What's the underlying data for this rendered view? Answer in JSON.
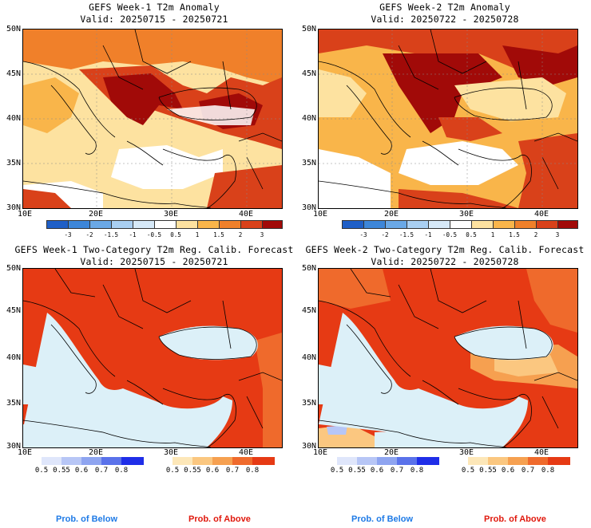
{
  "panels": [
    {
      "title": "GEFS Week-1 T2m Anomaly",
      "valid": "Valid: 20250715 - 20250721"
    },
    {
      "title": "GEFS Week-2 T2m Anomaly",
      "valid": "Valid: 20250722 - 20250728"
    },
    {
      "title": "GEFS Week-1 Two-Category T2m Reg. Calib. Forecast",
      "valid": "Valid: 20250715 - 20250721"
    },
    {
      "title": "GEFS Week-2 Two-Category T2m Reg. Calib. Forecast",
      "valid": "Valid: 20250722 - 20250728"
    }
  ],
  "axes": {
    "lat_labels": [
      "50N",
      "45N",
      "40N",
      "35N",
      "30N"
    ],
    "lon_labels": [
      "10E",
      "20E",
      "30E",
      "40E"
    ]
  },
  "anomaly_scale": {
    "ticks": [
      "-3",
      "-2",
      "-1.5",
      "-1",
      "-0.5",
      "0.5",
      "1",
      "1.5",
      "2",
      "3"
    ],
    "colors": [
      "#1f5fc7",
      "#3d86d9",
      "#6aa8e6",
      "#a9cff2",
      "#d6e9f8",
      "#ffffff",
      "#fde2a0",
      "#f9b54a",
      "#f0802a",
      "#d9411a",
      "#a10a08"
    ]
  },
  "prob_scale": {
    "below_ticks": [
      "0.5",
      "0.55",
      "0.6",
      "0.7",
      "0.8"
    ],
    "below_colors": [
      "#dfe6fb",
      "#b7c6f6",
      "#8ea4f0",
      "#5a72ea",
      "#1f2ee8"
    ],
    "above_ticks": [
      "0.5",
      "0.55",
      "0.6",
      "0.7",
      "0.8"
    ],
    "above_colors": [
      "#fde7b8",
      "#fbc780",
      "#f6a050",
      "#ef6a2c",
      "#e63a14"
    ],
    "below_label": "Prob. of Below",
    "above_label": "Prob. of Above",
    "below_label_color": "#1e7ae6",
    "above_label_color": "#e0180c"
  },
  "map_colors": {
    "sea": "#ffffff",
    "prob_sea": "#dcf0f8",
    "coast": "#000000"
  }
}
